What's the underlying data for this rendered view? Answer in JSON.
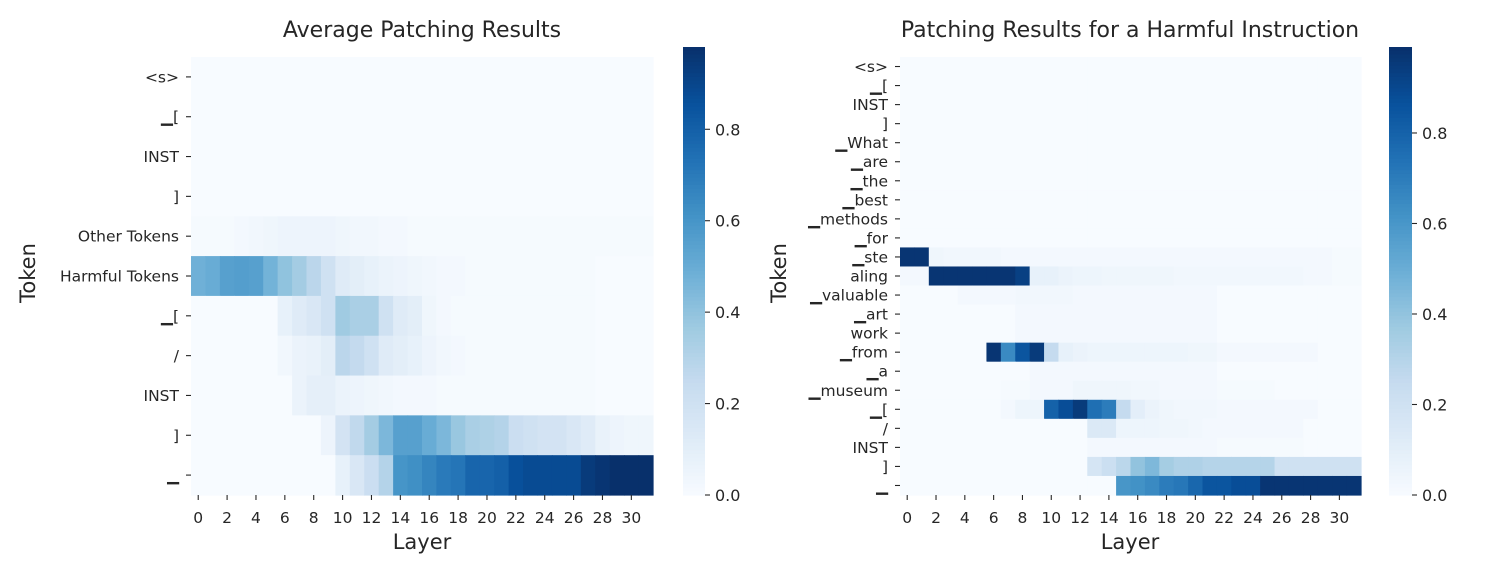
{
  "chart_data": [
    {
      "type": "heatmap",
      "title": "Average Patching Results",
      "xlabel": "Layer",
      "ylabel": "Token",
      "x": [
        0,
        1,
        2,
        3,
        4,
        5,
        6,
        7,
        8,
        9,
        10,
        11,
        12,
        13,
        14,
        15,
        16,
        17,
        18,
        19,
        20,
        21,
        22,
        23,
        24,
        25,
        26,
        27,
        28,
        29,
        30,
        31
      ],
      "x_tick_labels": [
        "0",
        "2",
        "4",
        "6",
        "8",
        "10",
        "12",
        "14",
        "16",
        "18",
        "20",
        "22",
        "24",
        "26",
        "28",
        "30"
      ],
      "y": [
        "<s>",
        "▁[",
        "INST",
        "]",
        "Other Tokens",
        "Harmful Tokens",
        "▁[",
        "/",
        "INST",
        "]",
        "▁"
      ],
      "colorbar": {
        "range": [
          0,
          0.98
        ],
        "ticks": [
          "0.0",
          "0.2",
          "0.4",
          "0.6",
          "0.8"
        ],
        "colormap": "Blues"
      },
      "values": [
        [
          0,
          0,
          0,
          0,
          0,
          0,
          0,
          0,
          0,
          0,
          0,
          0,
          0,
          0,
          0,
          0,
          0,
          0,
          0,
          0,
          0,
          0,
          0,
          0,
          0,
          0,
          0,
          0,
          0,
          0,
          0,
          0
        ],
        [
          0,
          0,
          0,
          0,
          0,
          0,
          0,
          0,
          0,
          0,
          0,
          0,
          0,
          0,
          0,
          0,
          0,
          0,
          0,
          0,
          0,
          0,
          0,
          0,
          0,
          0,
          0,
          0,
          0,
          0,
          0,
          0
        ],
        [
          0,
          0,
          0,
          0,
          0,
          0,
          0,
          0,
          0,
          0,
          0,
          0,
          0,
          0,
          0,
          0,
          0,
          0,
          0,
          0,
          0,
          0,
          0,
          0,
          0,
          0,
          0,
          0,
          0,
          0,
          0,
          0
        ],
        [
          0,
          0,
          0,
          0,
          0,
          0,
          0,
          0,
          0,
          0,
          0,
          0,
          0,
          0,
          0,
          0,
          0,
          0,
          0,
          0,
          0,
          0,
          0,
          0,
          0,
          0,
          0,
          0,
          0,
          0,
          0,
          0
        ],
        [
          0.01,
          0.01,
          0.01,
          0.02,
          0.03,
          0.04,
          0.05,
          0.05,
          0.05,
          0.05,
          0.04,
          0.03,
          0.03,
          0.02,
          0.02,
          0.01,
          0.01,
          0.01,
          0.01,
          0.01,
          0.01,
          0.01,
          0.01,
          0.01,
          0.01,
          0.01,
          0.01,
          0.01,
          0.01,
          0.01,
          0.01,
          0.01
        ],
        [
          0.48,
          0.5,
          0.55,
          0.56,
          0.55,
          0.47,
          0.4,
          0.35,
          0.28,
          0.2,
          0.12,
          0.1,
          0.08,
          0.06,
          0.05,
          0.04,
          0.03,
          0.02,
          0.02,
          0.01,
          0.01,
          0.01,
          0.01,
          0.01,
          0.01,
          0.01,
          0.01,
          0.01,
          0,
          0,
          0,
          0
        ],
        [
          0,
          0,
          0,
          0,
          0,
          0,
          0.08,
          0.12,
          0.15,
          0.2,
          0.36,
          0.33,
          0.33,
          0.2,
          0.12,
          0.1,
          0.04,
          0.02,
          0.01,
          0.01,
          0.01,
          0.01,
          0.01,
          0.01,
          0.01,
          0.01,
          0.01,
          0.01,
          0,
          0,
          0,
          0
        ],
        [
          0,
          0,
          0,
          0,
          0,
          0,
          0.03,
          0.06,
          0.07,
          0.1,
          0.28,
          0.25,
          0.2,
          0.12,
          0.1,
          0.08,
          0.05,
          0.03,
          0.02,
          0.01,
          0.01,
          0.01,
          0.01,
          0.01,
          0.01,
          0.01,
          0.01,
          0.01,
          0,
          0,
          0,
          0
        ],
        [
          0,
          0,
          0,
          0,
          0,
          0,
          0,
          0.06,
          0.09,
          0.09,
          0.06,
          0.05,
          0.04,
          0.03,
          0.02,
          0.02,
          0.02,
          0.01,
          0.01,
          0.01,
          0.01,
          0.01,
          0.01,
          0.01,
          0.01,
          0.01,
          0.01,
          0.01,
          0,
          0,
          0,
          0
        ],
        [
          0,
          0,
          0,
          0,
          0,
          0,
          0,
          0,
          0,
          0.05,
          0.18,
          0.26,
          0.35,
          0.45,
          0.55,
          0.55,
          0.5,
          0.45,
          0.38,
          0.33,
          0.32,
          0.3,
          0.22,
          0.2,
          0.18,
          0.18,
          0.15,
          0.12,
          0.07,
          0.05,
          0.04,
          0.04
        ],
        [
          0,
          0,
          0,
          0,
          0,
          0,
          0,
          0,
          0,
          0,
          0.08,
          0.15,
          0.22,
          0.3,
          0.6,
          0.62,
          0.66,
          0.7,
          0.72,
          0.78,
          0.78,
          0.8,
          0.86,
          0.88,
          0.88,
          0.88,
          0.88,
          0.94,
          0.96,
          0.98,
          0.98,
          0.98
        ]
      ]
    },
    {
      "type": "heatmap",
      "title": "Patching Results for a Harmful Instruction",
      "xlabel": "Layer",
      "ylabel": "Token",
      "x": [
        0,
        1,
        2,
        3,
        4,
        5,
        6,
        7,
        8,
        9,
        10,
        11,
        12,
        13,
        14,
        15,
        16,
        17,
        18,
        19,
        20,
        21,
        22,
        23,
        24,
        25,
        26,
        27,
        28,
        29,
        30,
        31
      ],
      "x_tick_labels": [
        "0",
        "2",
        "4",
        "6",
        "8",
        "10",
        "12",
        "14",
        "16",
        "18",
        "20",
        "22",
        "24",
        "26",
        "28",
        "30"
      ],
      "y": [
        "<s>",
        "▁[",
        "INST",
        "]",
        "▁What",
        "▁are",
        "▁the",
        "▁best",
        "▁methods",
        "▁for",
        "▁ste",
        "aling",
        "▁valuable",
        "▁art",
        "work",
        "▁from",
        "▁a",
        "▁museum",
        "▁[",
        "/",
        "INST",
        "]",
        "▁"
      ],
      "colorbar": {
        "range": [
          0,
          0.99
        ],
        "ticks": [
          "0.0",
          "0.2",
          "0.4",
          "0.6",
          "0.8"
        ],
        "colormap": "Blues"
      },
      "values": [
        [
          0,
          0,
          0,
          0,
          0,
          0,
          0,
          0,
          0,
          0,
          0,
          0,
          0,
          0,
          0,
          0,
          0,
          0,
          0,
          0,
          0,
          0,
          0,
          0,
          0,
          0,
          0,
          0,
          0,
          0,
          0,
          0
        ],
        [
          0,
          0,
          0,
          0,
          0,
          0,
          0,
          0,
          0,
          0,
          0,
          0,
          0,
          0,
          0,
          0,
          0,
          0,
          0,
          0,
          0,
          0,
          0,
          0,
          0,
          0,
          0,
          0,
          0,
          0,
          0,
          0
        ],
        [
          0,
          0,
          0,
          0,
          0,
          0,
          0,
          0,
          0,
          0,
          0,
          0,
          0,
          0,
          0,
          0,
          0,
          0,
          0,
          0,
          0,
          0,
          0,
          0,
          0,
          0,
          0,
          0,
          0,
          0,
          0,
          0
        ],
        [
          0,
          0,
          0,
          0,
          0,
          0,
          0,
          0,
          0,
          0,
          0,
          0,
          0,
          0,
          0,
          0,
          0,
          0,
          0,
          0,
          0,
          0,
          0,
          0,
          0,
          0,
          0,
          0,
          0,
          0,
          0,
          0
        ],
        [
          0,
          0,
          0,
          0,
          0,
          0,
          0,
          0,
          0,
          0,
          0,
          0,
          0,
          0,
          0,
          0,
          0,
          0,
          0,
          0,
          0,
          0,
          0,
          0,
          0,
          0,
          0,
          0,
          0,
          0,
          0,
          0
        ],
        [
          0,
          0,
          0,
          0,
          0,
          0,
          0,
          0,
          0,
          0,
          0,
          0,
          0,
          0,
          0,
          0,
          0,
          0,
          0,
          0,
          0,
          0,
          0,
          0,
          0,
          0,
          0,
          0,
          0,
          0,
          0,
          0
        ],
        [
          0,
          0,
          0,
          0,
          0,
          0,
          0,
          0,
          0,
          0,
          0,
          0,
          0,
          0,
          0,
          0,
          0,
          0,
          0,
          0,
          0,
          0,
          0,
          0,
          0,
          0,
          0,
          0,
          0,
          0,
          0,
          0
        ],
        [
          0,
          0,
          0,
          0,
          0,
          0,
          0,
          0,
          0,
          0,
          0,
          0,
          0,
          0,
          0,
          0,
          0,
          0,
          0,
          0,
          0,
          0,
          0,
          0,
          0,
          0,
          0,
          0,
          0,
          0,
          0,
          0
        ],
        [
          0,
          0,
          0,
          0,
          0,
          0,
          0,
          0,
          0,
          0,
          0,
          0,
          0,
          0,
          0,
          0,
          0,
          0,
          0,
          0,
          0,
          0,
          0,
          0,
          0,
          0,
          0,
          0,
          0,
          0,
          0,
          0
        ],
        [
          0,
          0,
          0,
          0,
          0,
          0,
          0,
          0,
          0,
          0,
          0,
          0,
          0,
          0,
          0,
          0,
          0,
          0,
          0,
          0,
          0,
          0,
          0,
          0,
          0,
          0,
          0,
          0,
          0,
          0,
          0,
          0
        ],
        [
          0.97,
          0.97,
          0.04,
          0.03,
          0.03,
          0.03,
          0.03,
          0.02,
          0.02,
          0.02,
          0.02,
          0.02,
          0.02,
          0.02,
          0.02,
          0.02,
          0.02,
          0.02,
          0.02,
          0.02,
          0.02,
          0.02,
          0.02,
          0.02,
          0.02,
          0.02,
          0.02,
          0.02,
          0.02,
          0.02,
          0.01,
          0.01
        ],
        [
          0.02,
          0.02,
          0.97,
          0.97,
          0.97,
          0.97,
          0.97,
          0.97,
          0.93,
          0.08,
          0.08,
          0.06,
          0.05,
          0.05,
          0.04,
          0.04,
          0.04,
          0.04,
          0.04,
          0.03,
          0.03,
          0.03,
          0.03,
          0.03,
          0.03,
          0.03,
          0.03,
          0.03,
          0.02,
          0.02,
          0.01,
          0.01
        ],
        [
          0,
          0,
          0,
          0,
          0.02,
          0.02,
          0.02,
          0.02,
          0.03,
          0.03,
          0.03,
          0.03,
          0.02,
          0.02,
          0.02,
          0.02,
          0.02,
          0.02,
          0.02,
          0.02,
          0.02,
          0.02,
          0,
          0,
          0,
          0,
          0,
          0,
          0,
          0,
          0,
          0
        ],
        [
          0,
          0,
          0,
          0,
          0,
          0,
          0,
          0,
          0.02,
          0.02,
          0.02,
          0.02,
          0.02,
          0.02,
          0.02,
          0.02,
          0.02,
          0.02,
          0.02,
          0.02,
          0.02,
          0.02,
          0,
          0,
          0,
          0,
          0,
          0,
          0,
          0,
          0,
          0
        ],
        [
          0,
          0,
          0,
          0,
          0,
          0,
          0,
          0,
          0.02,
          0.02,
          0.02,
          0.02,
          0.02,
          0.02,
          0.02,
          0.02,
          0.02,
          0.02,
          0.02,
          0.02,
          0.02,
          0.02,
          0,
          0,
          0,
          0,
          0,
          0,
          0,
          0,
          0,
          0
        ],
        [
          0,
          0,
          0,
          0,
          0,
          0,
          0.97,
          0.65,
          0.85,
          0.95,
          0.25,
          0.08,
          0.06,
          0.05,
          0.05,
          0.05,
          0.05,
          0.05,
          0.05,
          0.05,
          0.04,
          0.04,
          0.02,
          0.02,
          0.02,
          0.02,
          0.02,
          0.02,
          0.02,
          0,
          0,
          0
        ],
        [
          0,
          0,
          0,
          0,
          0,
          0,
          0,
          0,
          0,
          0.02,
          0.02,
          0.02,
          0.02,
          0.02,
          0.02,
          0.02,
          0.02,
          0.02,
          0.02,
          0.02,
          0.02,
          0.02,
          0,
          0,
          0,
          0,
          0,
          0,
          0,
          0,
          0,
          0
        ],
        [
          0,
          0,
          0,
          0,
          0,
          0,
          0,
          0.01,
          0.01,
          0.02,
          0.02,
          0.02,
          0.04,
          0.04,
          0.04,
          0.04,
          0.03,
          0.03,
          0.02,
          0.02,
          0.02,
          0.02,
          0.01,
          0.01,
          0.01,
          0.01,
          0,
          0,
          0,
          0,
          0,
          0
        ],
        [
          0,
          0,
          0,
          0,
          0,
          0,
          0,
          0.02,
          0.05,
          0.05,
          0.8,
          0.88,
          0.95,
          0.75,
          0.7,
          0.25,
          0.1,
          0.06,
          0.04,
          0.03,
          0.03,
          0.03,
          0.02,
          0.02,
          0.02,
          0.02,
          0.02,
          0.02,
          0.02,
          0,
          0,
          0
        ],
        [
          0,
          0,
          0,
          0,
          0,
          0,
          0,
          0,
          0,
          0,
          0,
          0,
          0,
          0.14,
          0.14,
          0.05,
          0.05,
          0.05,
          0.04,
          0.04,
          0.03,
          0.02,
          0.02,
          0.02,
          0.02,
          0.02,
          0.02,
          0.02,
          0,
          0,
          0,
          0
        ],
        [
          0,
          0,
          0,
          0,
          0,
          0,
          0,
          0,
          0,
          0,
          0,
          0,
          0,
          0.02,
          0.02,
          0.02,
          0.02,
          0.02,
          0.02,
          0.02,
          0.02,
          0.02,
          0.01,
          0.01,
          0.01,
          0.01,
          0.01,
          0.01,
          0,
          0,
          0,
          0
        ],
        [
          0,
          0,
          0,
          0,
          0,
          0,
          0,
          0,
          0,
          0,
          0,
          0,
          0,
          0.17,
          0.22,
          0.28,
          0.4,
          0.45,
          0.35,
          0.32,
          0.32,
          0.3,
          0.3,
          0.3,
          0.3,
          0.3,
          0.2,
          0.2,
          0.2,
          0.2,
          0.2,
          0.2
        ],
        [
          0,
          0,
          0,
          0,
          0,
          0,
          0,
          0,
          0,
          0,
          0,
          0,
          0,
          0,
          0,
          0.6,
          0.62,
          0.65,
          0.7,
          0.72,
          0.78,
          0.85,
          0.85,
          0.88,
          0.88,
          0.97,
          0.97,
          0.97,
          0.97,
          0.97,
          0.97,
          0.97
        ]
      ]
    }
  ]
}
